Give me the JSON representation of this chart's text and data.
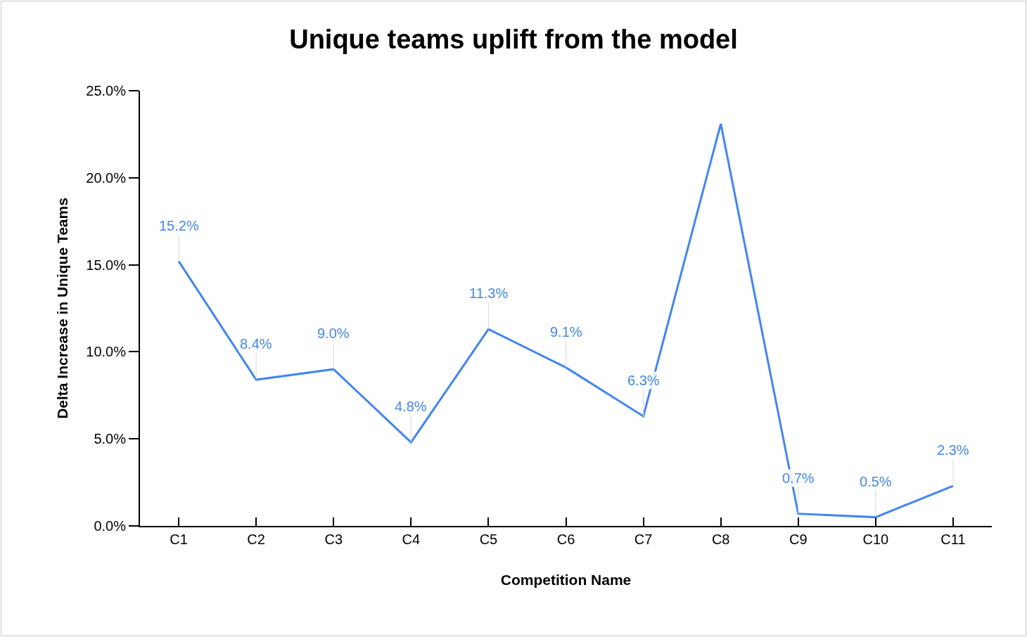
{
  "chart_data": {
    "type": "line",
    "title": "Unique teams uplift from the model",
    "xlabel": "Competition Name",
    "ylabel": "Delta Increase in Unique Teams",
    "categories": [
      "C1",
      "C2",
      "C3",
      "C4",
      "C5",
      "C6",
      "C7",
      "C8",
      "C9",
      "C10",
      "C11"
    ],
    "series": [
      {
        "color": "#4285f4",
        "values": [
          15.2,
          8.4,
          9.0,
          4.8,
          11.3,
          9.1,
          6.3,
          23.1,
          0.7,
          0.5,
          2.3
        ],
        "value_labels": [
          "15.2%",
          "8.4%",
          "9.0%",
          "4.8%",
          "11.3%",
          "9.1%",
          "6.3%",
          null,
          "0.7%",
          "0.5%",
          "2.3%"
        ]
      }
    ],
    "ylim": [
      0,
      25
    ],
    "yticks": [
      {
        "value": 0,
        "label": "0.0%"
      },
      {
        "value": 5,
        "label": "5.0%"
      },
      {
        "value": 10,
        "label": "10.0%"
      },
      {
        "value": 15,
        "label": "15.0%"
      },
      {
        "value": 20,
        "label": "20.0%"
      },
      {
        "value": 25,
        "label": "25.0%"
      }
    ],
    "grid": false,
    "marker": "none",
    "line_style": "solid"
  }
}
